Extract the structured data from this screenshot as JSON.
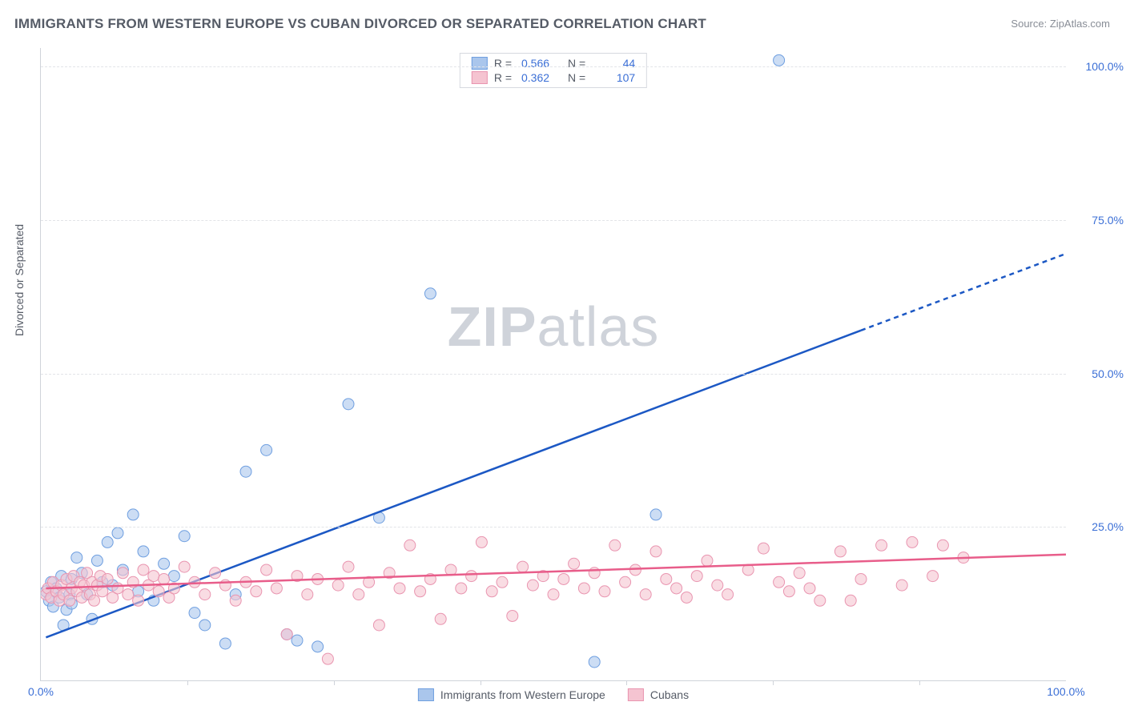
{
  "title": "IMMIGRANTS FROM WESTERN EUROPE VS CUBAN DIVORCED OR SEPARATED CORRELATION CHART",
  "source_label": "Source:",
  "source_link_text": "ZipAtlas.com",
  "y_axis_label": "Divorced or Separated",
  "watermark_bold": "ZIP",
  "watermark_light": "atlas",
  "colors": {
    "blue_fill": "#aac6ec",
    "blue_stroke": "#6f9fe0",
    "blue_line": "#1c58c4",
    "pink_fill": "#f5c4d1",
    "pink_stroke": "#e995b0",
    "pink_line": "#e85d8a",
    "axis_text": "#3b6fd6",
    "grid": "#e2e4e8",
    "axis_line": "#cfd3da",
    "title_color": "#555b66",
    "muted": "#888d96"
  },
  "chart": {
    "type": "scatter",
    "xlim": [
      0,
      100
    ],
    "ylim": [
      0,
      103
    ],
    "x_ticks_major": [
      0,
      100
    ],
    "x_ticks_minor": [
      14.3,
      28.6,
      42.9,
      57.1,
      71.4,
      85.7
    ],
    "x_tick_labels": [
      "0.0%",
      "100.0%"
    ],
    "y_ticks": [
      25,
      50,
      75,
      100
    ],
    "y_tick_labels": [
      "25.0%",
      "50.0%",
      "75.0%",
      "100.0%"
    ],
    "marker_radius": 7,
    "marker_opacity": 0.6,
    "line_width": 2.5
  },
  "legend_top": [
    {
      "swatch_fill": "#aac6ec",
      "swatch_stroke": "#6f9fe0",
      "r_label": "R =",
      "r_value": "0.566",
      "n_label": "N =",
      "n_value": "44"
    },
    {
      "swatch_fill": "#f5c4d1",
      "swatch_stroke": "#e995b0",
      "r_label": "R =",
      "r_value": "0.362",
      "n_label": "N =",
      "n_value": "107"
    }
  ],
  "legend_bottom": [
    {
      "swatch_fill": "#aac6ec",
      "swatch_stroke": "#6f9fe0",
      "label": "Immigrants from Western Europe"
    },
    {
      "swatch_fill": "#f5c4d1",
      "swatch_stroke": "#e995b0",
      "label": "Cubans"
    }
  ],
  "series_blue": {
    "points": [
      [
        0.5,
        14.5
      ],
      [
        0.8,
        13.0
      ],
      [
        1.0,
        16.0
      ],
      [
        1.2,
        12.0
      ],
      [
        1.5,
        15.0
      ],
      [
        1.8,
        13.5
      ],
      [
        2.0,
        17.0
      ],
      [
        2.2,
        9.0
      ],
      [
        2.5,
        11.5
      ],
      [
        2.8,
        14.0
      ],
      [
        3.0,
        16.5
      ],
      [
        3.0,
        12.5
      ],
      [
        3.5,
        20.0
      ],
      [
        4.0,
        17.5
      ],
      [
        4.5,
        14.0
      ],
      [
        5.0,
        10.0
      ],
      [
        5.5,
        19.5
      ],
      [
        6.0,
        16.0
      ],
      [
        6.5,
        22.5
      ],
      [
        7.0,
        15.5
      ],
      [
        7.5,
        24.0
      ],
      [
        8.0,
        18.0
      ],
      [
        9.0,
        27.0
      ],
      [
        9.5,
        14.5
      ],
      [
        10.0,
        21.0
      ],
      [
        11.0,
        13.0
      ],
      [
        12.0,
        19.0
      ],
      [
        13.0,
        17.0
      ],
      [
        14.0,
        23.5
      ],
      [
        15.0,
        11.0
      ],
      [
        16.0,
        9.0
      ],
      [
        18.0,
        6.0
      ],
      [
        19.0,
        14.0
      ],
      [
        20.0,
        34.0
      ],
      [
        22.0,
        37.5
      ],
      [
        24.0,
        7.5
      ],
      [
        25.0,
        6.5
      ],
      [
        27.0,
        5.5
      ],
      [
        30.0,
        45.0
      ],
      [
        33.0,
        26.5
      ],
      [
        38.0,
        63.0
      ],
      [
        54.0,
        3.0
      ],
      [
        60.0,
        27.0
      ],
      [
        72.0,
        101.0
      ]
    ],
    "trend": {
      "x1": 0.5,
      "y1": 7.0,
      "x2_solid": 80.0,
      "y2_solid": 57.0,
      "x2_dash": 100.0,
      "y2_dash": 69.5
    }
  },
  "series_pink": {
    "points": [
      [
        0.5,
        14.0
      ],
      [
        0.7,
        15.0
      ],
      [
        1.0,
        13.5
      ],
      [
        1.2,
        16.0
      ],
      [
        1.5,
        14.5
      ],
      [
        1.8,
        13.0
      ],
      [
        2.0,
        15.5
      ],
      [
        2.2,
        14.0
      ],
      [
        2.5,
        16.5
      ],
      [
        2.8,
        13.0
      ],
      [
        3.0,
        15.0
      ],
      [
        3.2,
        17.0
      ],
      [
        3.5,
        14.5
      ],
      [
        3.8,
        16.0
      ],
      [
        4.0,
        13.5
      ],
      [
        4.2,
        15.5
      ],
      [
        4.5,
        17.5
      ],
      [
        4.8,
        14.0
      ],
      [
        5.0,
        16.0
      ],
      [
        5.2,
        13.0
      ],
      [
        5.5,
        15.5
      ],
      [
        5.8,
        17.0
      ],
      [
        6.0,
        14.5
      ],
      [
        6.5,
        16.5
      ],
      [
        7.0,
        13.5
      ],
      [
        7.5,
        15.0
      ],
      [
        8.0,
        17.5
      ],
      [
        8.5,
        14.0
      ],
      [
        9.0,
        16.0
      ],
      [
        9.5,
        13.0
      ],
      [
        10.0,
        18.0
      ],
      [
        10.5,
        15.5
      ],
      [
        11.0,
        17.0
      ],
      [
        11.5,
        14.5
      ],
      [
        12.0,
        16.5
      ],
      [
        12.5,
        13.5
      ],
      [
        13.0,
        15.0
      ],
      [
        14.0,
        18.5
      ],
      [
        15.0,
        16.0
      ],
      [
        16.0,
        14.0
      ],
      [
        17.0,
        17.5
      ],
      [
        18.0,
        15.5
      ],
      [
        19.0,
        13.0
      ],
      [
        20.0,
        16.0
      ],
      [
        21.0,
        14.5
      ],
      [
        22.0,
        18.0
      ],
      [
        23.0,
        15.0
      ],
      [
        24.0,
        7.5
      ],
      [
        25.0,
        17.0
      ],
      [
        26.0,
        14.0
      ],
      [
        27.0,
        16.5
      ],
      [
        28.0,
        3.5
      ],
      [
        29.0,
        15.5
      ],
      [
        30.0,
        18.5
      ],
      [
        31.0,
        14.0
      ],
      [
        32.0,
        16.0
      ],
      [
        33.0,
        9.0
      ],
      [
        34.0,
        17.5
      ],
      [
        35.0,
        15.0
      ],
      [
        36.0,
        22.0
      ],
      [
        37.0,
        14.5
      ],
      [
        38.0,
        16.5
      ],
      [
        39.0,
        10.0
      ],
      [
        40.0,
        18.0
      ],
      [
        41.0,
        15.0
      ],
      [
        42.0,
        17.0
      ],
      [
        43.0,
        22.5
      ],
      [
        44.0,
        14.5
      ],
      [
        45.0,
        16.0
      ],
      [
        46.0,
        10.5
      ],
      [
        47.0,
        18.5
      ],
      [
        48.0,
        15.5
      ],
      [
        49.0,
        17.0
      ],
      [
        50.0,
        14.0
      ],
      [
        51.0,
        16.5
      ],
      [
        52.0,
        19.0
      ],
      [
        53.0,
        15.0
      ],
      [
        54.0,
        17.5
      ],
      [
        55.0,
        14.5
      ],
      [
        56.0,
        22.0
      ],
      [
        57.0,
        16.0
      ],
      [
        58.0,
        18.0
      ],
      [
        59.0,
        14.0
      ],
      [
        60.0,
        21.0
      ],
      [
        61.0,
        16.5
      ],
      [
        62.0,
        15.0
      ],
      [
        63.0,
        13.5
      ],
      [
        64.0,
        17.0
      ],
      [
        65.0,
        19.5
      ],
      [
        66.0,
        15.5
      ],
      [
        67.0,
        14.0
      ],
      [
        69.0,
        18.0
      ],
      [
        70.5,
        21.5
      ],
      [
        72.0,
        16.0
      ],
      [
        73.0,
        14.5
      ],
      [
        74.0,
        17.5
      ],
      [
        75.0,
        15.0
      ],
      [
        76.0,
        13.0
      ],
      [
        78.0,
        21.0
      ],
      [
        79.0,
        13.0
      ],
      [
        80.0,
        16.5
      ],
      [
        82.0,
        22.0
      ],
      [
        84.0,
        15.5
      ],
      [
        85.0,
        22.5
      ],
      [
        87.0,
        17.0
      ],
      [
        88.0,
        22.0
      ],
      [
        90.0,
        20.0
      ]
    ],
    "trend": {
      "x1": 0.5,
      "y1": 15.0,
      "x2_solid": 100.0,
      "y2_solid": 20.5,
      "x2_dash": 100.0,
      "y2_dash": 20.5
    }
  }
}
